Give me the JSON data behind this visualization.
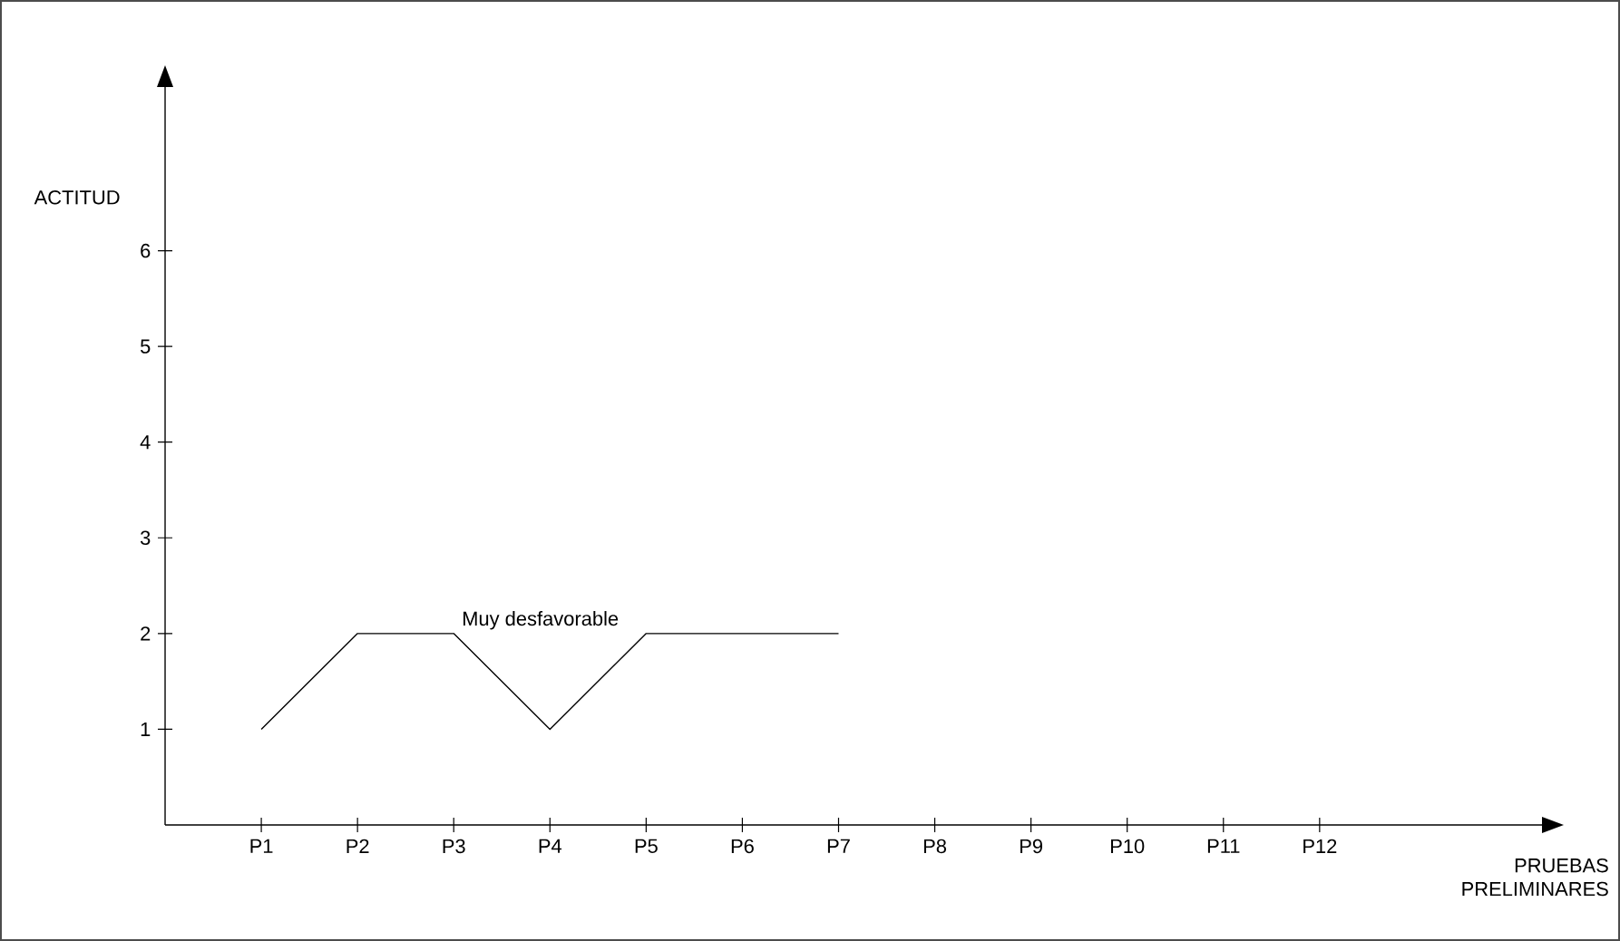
{
  "chart_data": {
    "type": "line",
    "xlabel": "PRUEBAS PRELIMINARES",
    "ylabel": "ACTITUD",
    "categories": [
      "P1",
      "P2",
      "P3",
      "P4",
      "P5",
      "P6",
      "P7",
      "P8",
      "P9",
      "P10",
      "P11",
      "P12"
    ],
    "series": [
      {
        "name": "Muy desfavorable",
        "color": "#000000",
        "values": [
          1,
          2,
          2,
          1,
          2,
          2,
          2,
          null,
          null,
          null,
          null,
          null
        ]
      }
    ],
    "ylim": [
      0,
      7.9
    ],
    "yticks": [
      1,
      2,
      3,
      4,
      5,
      6
    ],
    "grid": false,
    "legend": false,
    "marker": "none",
    "line_style": "solid"
  }
}
